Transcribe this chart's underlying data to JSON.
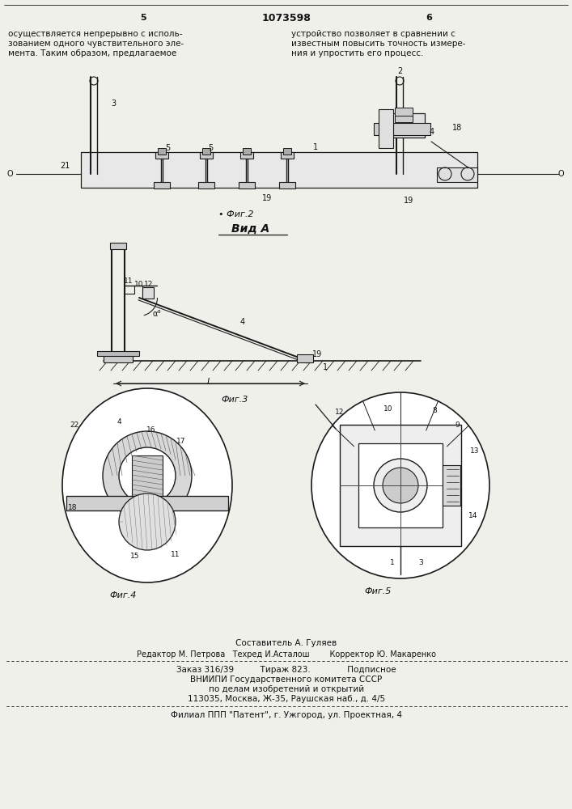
{
  "page_width": 7.07,
  "page_height": 10.0,
  "bg_color": "#f0f0ea",
  "header_number": "1073598",
  "page_left": "5",
  "page_right": "6",
  "text_left_lines": [
    "осуществляется непрерывно с исполь-",
    "зованием одного чувствительного эле-",
    "мента. Таким образом, предлагаемое"
  ],
  "text_right_lines": [
    "устройство позволяет в сравнении с",
    "известным повысить точность измере-",
    "ния и упростить его процесс."
  ],
  "footer_line1": "Составитель А. Гуляев",
  "footer_line2": "Редактор М. Петрова   Техред И.Асталош        Корректор Ю. Макаренко",
  "footer_line3": "Заказ 316/39          Тираж 823.              Подписное",
  "footer_line4": "ВНИИПИ Государственного комитета СССР",
  "footer_line5": "по делам изобретений и открытий",
  "footer_line6": "113035, Москва, Ж-35, Раушская наб., д. 4/5",
  "footer_line7": "Филиал ППП \"Патент\", г. Ужгород, ул. Проектная, 4",
  "lc": "#1a1a1a"
}
